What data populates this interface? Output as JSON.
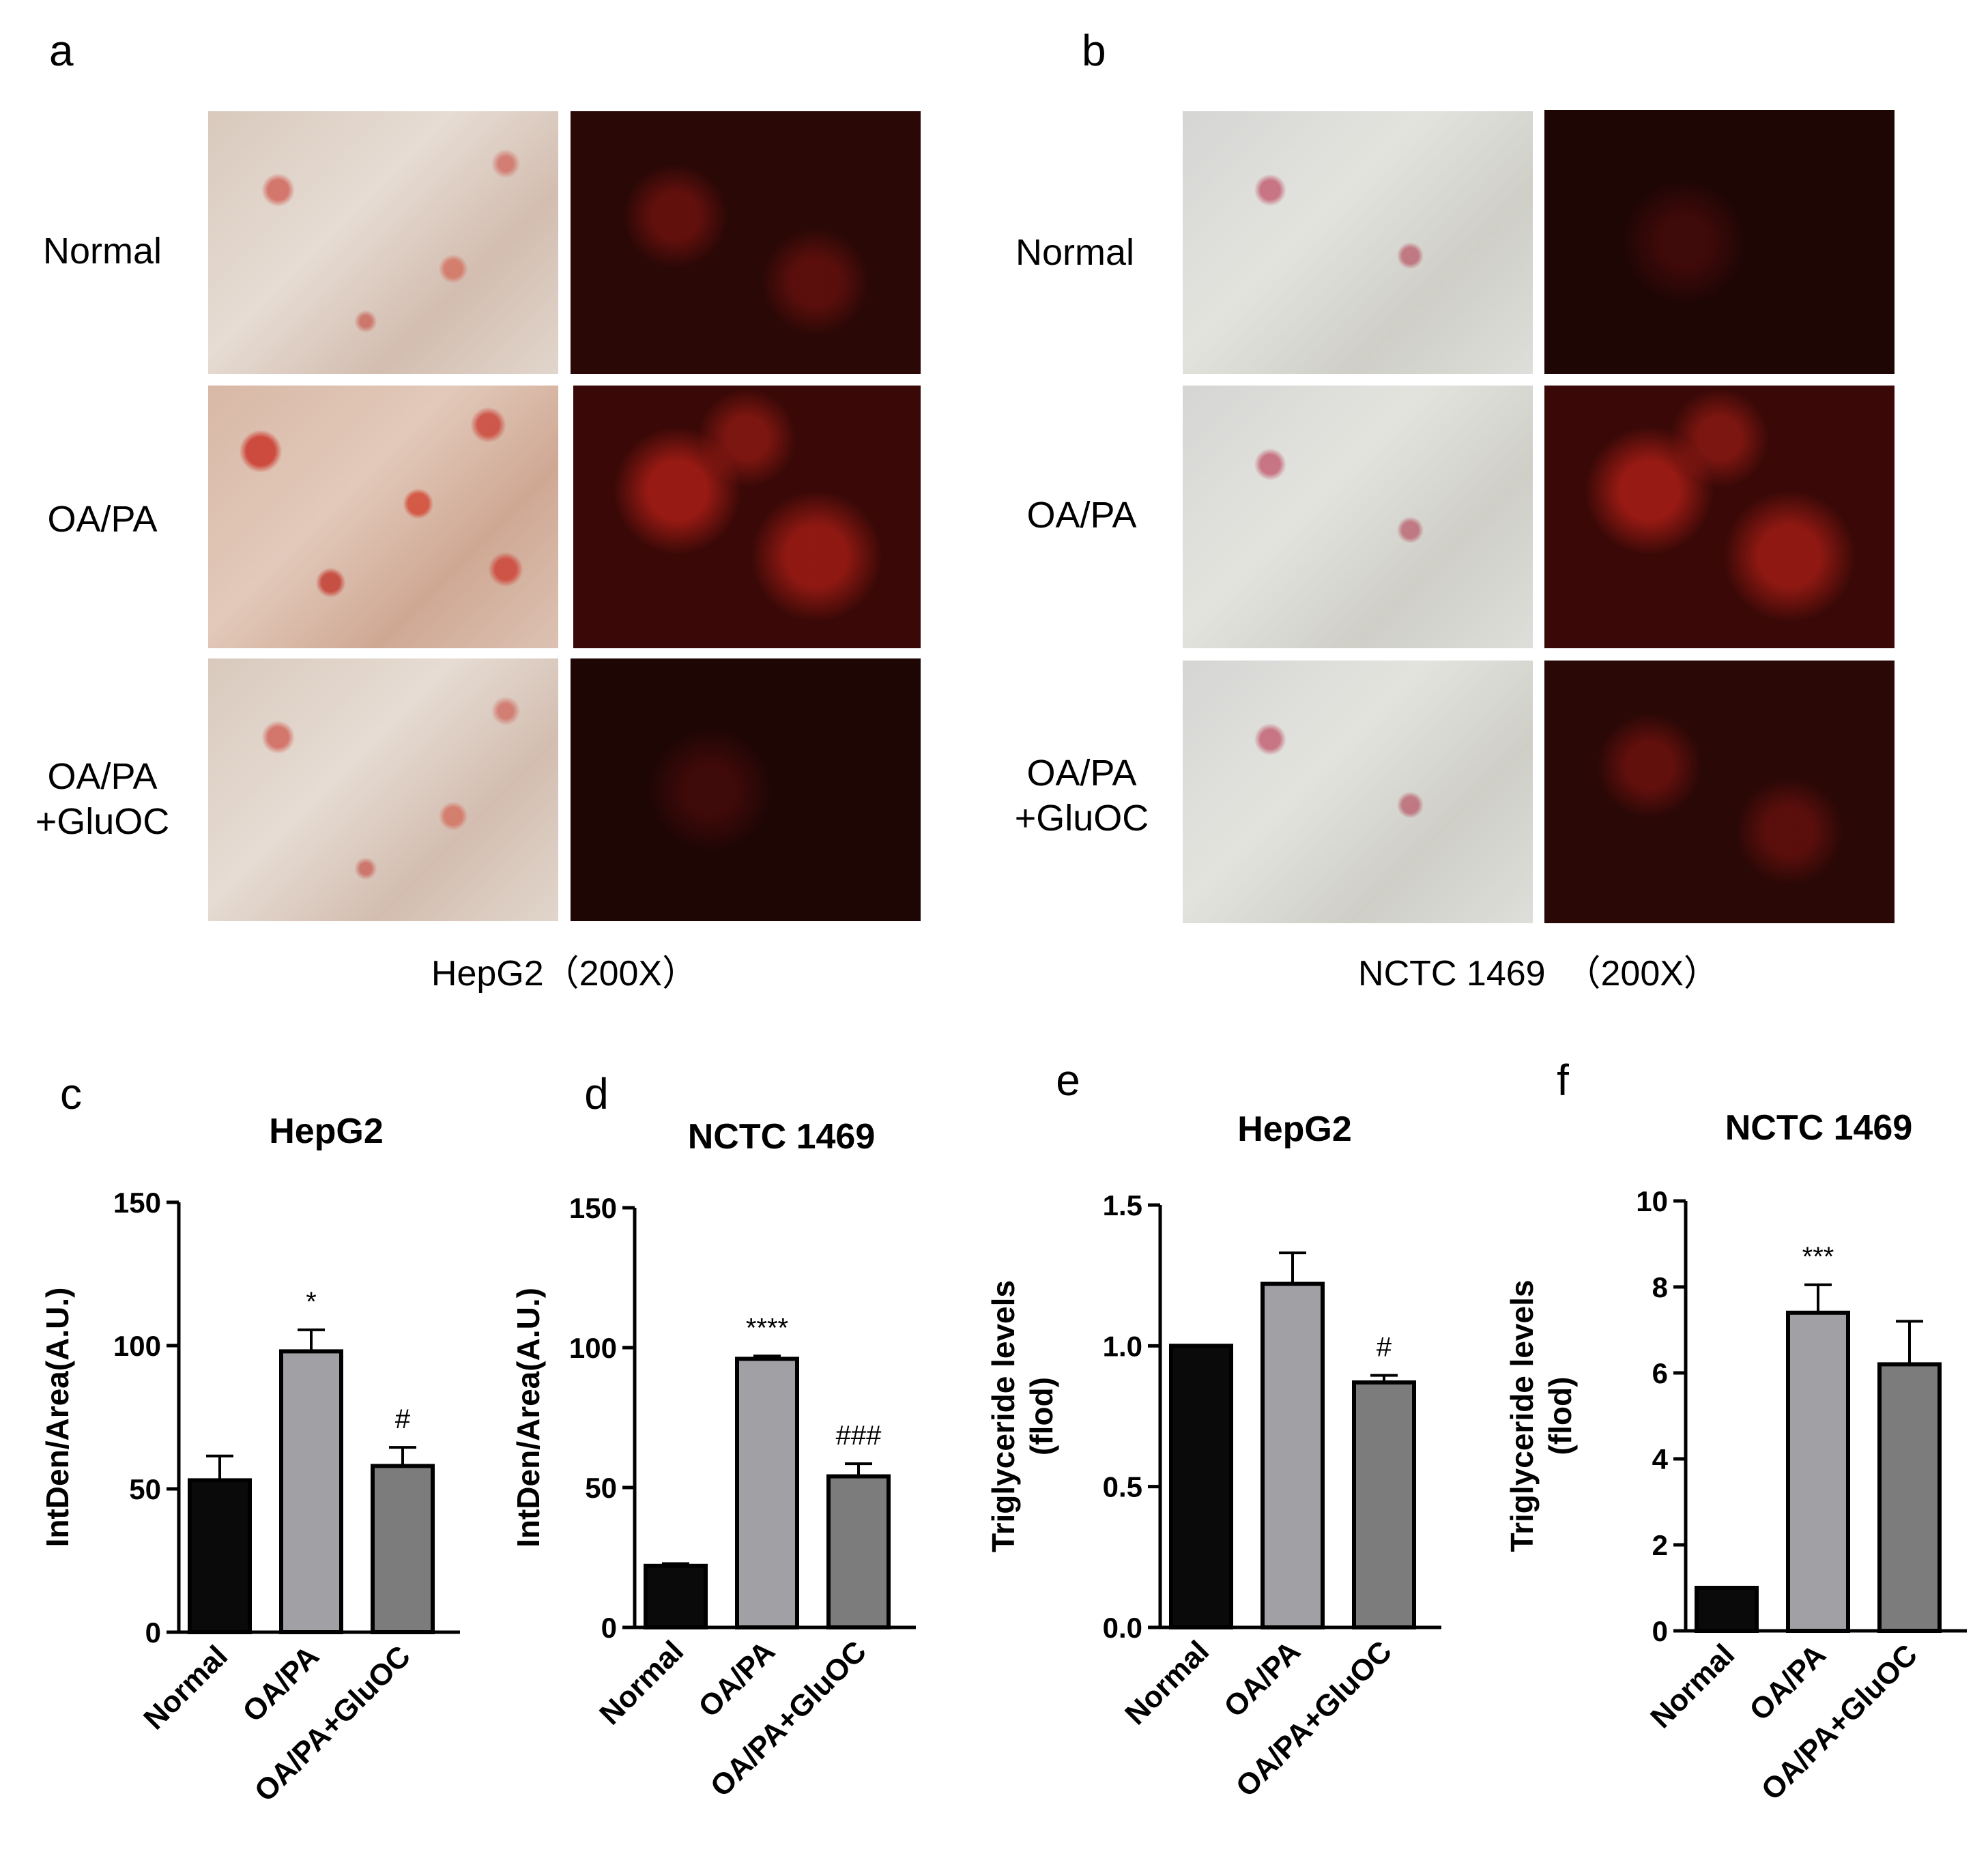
{
  "panel_a": {
    "letter": "a",
    "rows": [
      "Normal",
      "OA/PA",
      "OA/PA\n+GluOC"
    ],
    "caption": "HepG2（200X）"
  },
  "panel_b": {
    "letter": "b",
    "rows": [
      "Normal",
      "OA/PA",
      "OA/PA\n+GluOC"
    ],
    "caption": "NCTC 1469  （200X）"
  },
  "chart_data": [
    {
      "id": "c",
      "letter": "c",
      "type": "bar",
      "title": "HepG2",
      "ylabel": "IntDen/Area(A.U.)",
      "categories": [
        "Normal",
        "OA/PA",
        "OA/PA+GluOC"
      ],
      "values": [
        53,
        98,
        58
      ],
      "errors": [
        8.5,
        7.5,
        6.5
      ],
      "annotations": [
        "",
        "*",
        "#"
      ],
      "ylim": [
        0,
        150
      ],
      "yticks": [
        0,
        50,
        100,
        150
      ],
      "ytick_labels": [
        "0",
        "50",
        "100",
        "150"
      ],
      "colors": [
        "#0a0a0a",
        "#a0a0a5",
        "#7c7c7c"
      ]
    },
    {
      "id": "d",
      "letter": "d",
      "type": "bar",
      "title": "NCTC 1469",
      "ylabel": "IntDen/Area(A.U.)",
      "categories": [
        "Normal",
        "OA/PA",
        "OA/PA+GluOC"
      ],
      "values": [
        22,
        96,
        54
      ],
      "errors": [
        0.8,
        1.0,
        4.5
      ],
      "annotations": [
        "",
        "****",
        "###"
      ],
      "ylim": [
        0,
        150
      ],
      "yticks": [
        0,
        50,
        100,
        150
      ],
      "ytick_labels": [
        "0",
        "50",
        "100",
        "150"
      ],
      "colors": [
        "#0a0a0a",
        "#a0a0a5",
        "#7c7c7c"
      ]
    },
    {
      "id": "e",
      "letter": "e",
      "type": "bar",
      "title": "HepG2",
      "ylabel": "Triglyceride levels\n(flod)",
      "categories": [
        "Normal",
        "OA/PA",
        "OA/PA+GluOC"
      ],
      "values": [
        1.0,
        1.22,
        0.87
      ],
      "errors": [
        0,
        0.11,
        0.025
      ],
      "annotations": [
        "",
        "",
        "#"
      ],
      "ylim": [
        0,
        1.5
      ],
      "yticks": [
        0,
        0.5,
        1.0,
        1.5
      ],
      "ytick_labels": [
        "0.0",
        "0.5",
        "1.0",
        "1.5"
      ],
      "colors": [
        "#0a0a0a",
        "#a0a0a5",
        "#7c7c7c"
      ]
    },
    {
      "id": "f",
      "letter": "f",
      "type": "bar",
      "title": "NCTC 1469",
      "ylabel": "Triglyceride levels\n(flod)",
      "categories": [
        "Normal",
        "OA/PA",
        "OA/PA+GluOC"
      ],
      "values": [
        1.0,
        7.4,
        6.2
      ],
      "errors": [
        0,
        0.65,
        1.0
      ],
      "annotations": [
        "",
        "***",
        ""
      ],
      "ylim": [
        0,
        10
      ],
      "yticks": [
        0,
        2,
        4,
        6,
        8,
        10
      ],
      "ytick_labels": [
        "0",
        "2",
        "4",
        "6",
        "8",
        "10"
      ],
      "colors": [
        "#0a0a0a",
        "#a0a0a5",
        "#7c7c7c"
      ]
    }
  ]
}
